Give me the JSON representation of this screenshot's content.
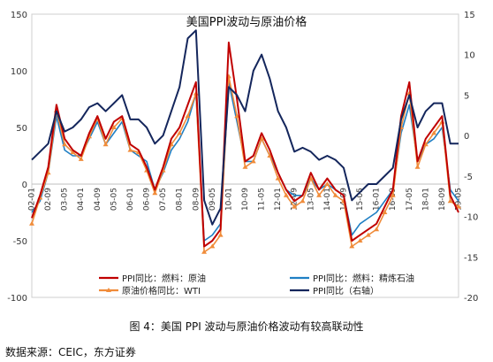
{
  "figure": {
    "caption": "图 4：美国 PPI 波动与原油价格波动有较高联动性",
    "source": "数据来源：CEIC，东方证券"
  },
  "chart_data": {
    "type": "line",
    "title": "美国PPI波动与原油价格",
    "x_tick_labels": [
      "02-01",
      "02-09",
      "03-05",
      "04-01",
      "04-09",
      "05-05",
      "06-01",
      "06-09",
      "07-05",
      "08-01",
      "08-09",
      "09-05",
      "10-01",
      "10-09",
      "11-05",
      "12-01",
      "12-09",
      "13-05",
      "14-01",
      "14-09",
      "15-05",
      "16-01",
      "16-09",
      "17-05",
      "18-01",
      "18-09",
      "19-05"
    ],
    "yleft": {
      "ylim": [
        -100,
        150
      ],
      "ticks": [
        -100,
        -50,
        0,
        50,
        100,
        150
      ]
    },
    "yright": {
      "ylim": [
        -20,
        15
      ],
      "ticks": [
        -20,
        -15,
        -10,
        -5,
        0,
        5,
        10,
        15
      ]
    },
    "colors": {
      "ppi_fuel_fuel": "#c00000",
      "ppi_fuel_refined": "#1f7fc4",
      "crude_oil": "#f08c3a",
      "ppi_yoy": "#14265c"
    },
    "legend": {
      "position": "bottom",
      "entries": [
        "PPI同比：燃料：原油",
        "PPI同比：燃料：精炼石油",
        "原油价格同比：WTI",
        "PPI同比（右轴）"
      ]
    },
    "x": [
      "02-01",
      "02-05",
      "02-09",
      "03-01",
      "03-05",
      "03-09",
      "04-01",
      "04-05",
      "04-09",
      "05-01",
      "05-05",
      "05-09",
      "06-01",
      "06-05",
      "06-09",
      "07-01",
      "07-05",
      "07-09",
      "08-01",
      "08-05",
      "08-09",
      "09-01",
      "09-05",
      "09-09",
      "10-01",
      "10-05",
      "10-09",
      "11-01",
      "11-05",
      "11-09",
      "12-01",
      "12-05",
      "12-09",
      "13-01",
      "13-05",
      "13-09",
      "14-01",
      "14-05",
      "14-09",
      "15-01",
      "15-05",
      "15-09",
      "16-01",
      "16-05",
      "16-09",
      "17-01",
      "17-05",
      "17-09",
      "18-01",
      "18-05",
      "18-09",
      "19-01",
      "19-05"
    ],
    "series": [
      {
        "name": "PPI同比：燃料：原油",
        "axis": "left",
        "values": [
          -30,
          -10,
          15,
          70,
          40,
          30,
          25,
          45,
          60,
          40,
          55,
          60,
          35,
          30,
          15,
          -5,
          15,
          40,
          50,
          70,
          90,
          -55,
          -50,
          -40,
          125,
          75,
          20,
          25,
          45,
          30,
          10,
          -5,
          -15,
          -10,
          10,
          -5,
          5,
          -5,
          -10,
          -50,
          -45,
          -40,
          -35,
          -20,
          -5,
          60,
          90,
          20,
          40,
          50,
          60,
          -10,
          -25
        ]
      },
      {
        "name": "PPI同比：燃料：精炼石油",
        "axis": "left",
        "values": [
          -25,
          -15,
          10,
          60,
          30,
          25,
          25,
          40,
          55,
          35,
          45,
          55,
          30,
          25,
          20,
          -5,
          10,
          30,
          40,
          55,
          80,
          -50,
          -45,
          -35,
          90,
          55,
          20,
          20,
          40,
          25,
          10,
          -5,
          -10,
          -10,
          5,
          -5,
          0,
          -5,
          -10,
          -45,
          -35,
          -30,
          -25,
          -15,
          -5,
          45,
          70,
          20,
          35,
          40,
          50,
          -5,
          -15
        ]
      },
      {
        "name": "原油价格同比：WTI",
        "axis": "left",
        "values": [
          -35,
          -12,
          10,
          65,
          35,
          28,
          22,
          42,
          58,
          35,
          50,
          58,
          30,
          28,
          12,
          -8,
          12,
          35,
          45,
          60,
          80,
          -60,
          -55,
          -45,
          95,
          60,
          15,
          20,
          40,
          25,
          5,
          -10,
          -20,
          -15,
          5,
          -10,
          0,
          -10,
          -15,
          -55,
          -50,
          -45,
          -40,
          -25,
          -10,
          50,
          80,
          15,
          35,
          45,
          55,
          -15,
          -20
        ]
      },
      {
        "name": "PPI同比（右轴）",
        "axis": "right",
        "values": [
          -3,
          -2,
          -1,
          3,
          0.5,
          1,
          2,
          3.5,
          4,
          3,
          4,
          5,
          2,
          2,
          1,
          -1,
          0,
          3,
          6,
          12,
          13,
          -8,
          -11,
          -9,
          6,
          5,
          3,
          8,
          10,
          7,
          3,
          1,
          -2,
          -1.5,
          -2,
          -3,
          -2.5,
          -3,
          -4,
          -8,
          -7,
          -6,
          -6,
          -5,
          -4,
          2,
          5,
          1,
          3,
          4,
          4,
          -1,
          -1
        ]
      }
    ]
  }
}
